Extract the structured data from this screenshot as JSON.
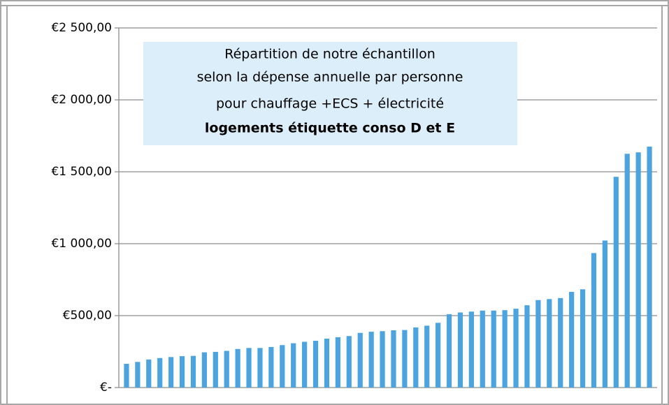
{
  "chart_data": {
    "type": "bar",
    "title": [
      "Répartition de notre échantillon",
      "selon la dépense annuelle par personne",
      "pour chauffage +ECS + électricité",
      "logements étiquette conso D et E"
    ],
    "values": [
      165,
      178,
      195,
      205,
      212,
      218,
      220,
      245,
      248,
      255,
      268,
      275,
      275,
      282,
      295,
      308,
      318,
      325,
      340,
      350,
      358,
      380,
      388,
      392,
      398,
      400,
      418,
      430,
      450,
      510,
      522,
      528,
      535,
      535,
      538,
      548,
      572,
      608,
      615,
      622,
      665,
      683,
      935,
      1022,
      1465,
      1625,
      1635,
      1675
    ],
    "color": "#4ba3e0",
    "ylim": [
      0,
      2500
    ],
    "yticks": [
      {
        "value": 0,
        "label": "€-"
      },
      {
        "value": 500,
        "label": "€500,00"
      },
      {
        "value": 1000,
        "label": "€1 000,00"
      },
      {
        "value": 1500,
        "label": "€1 500,00"
      },
      {
        "value": 2000,
        "label": "€2 000,00"
      },
      {
        "value": 2500,
        "label": "€2 500,00"
      }
    ],
    "grid": true
  }
}
